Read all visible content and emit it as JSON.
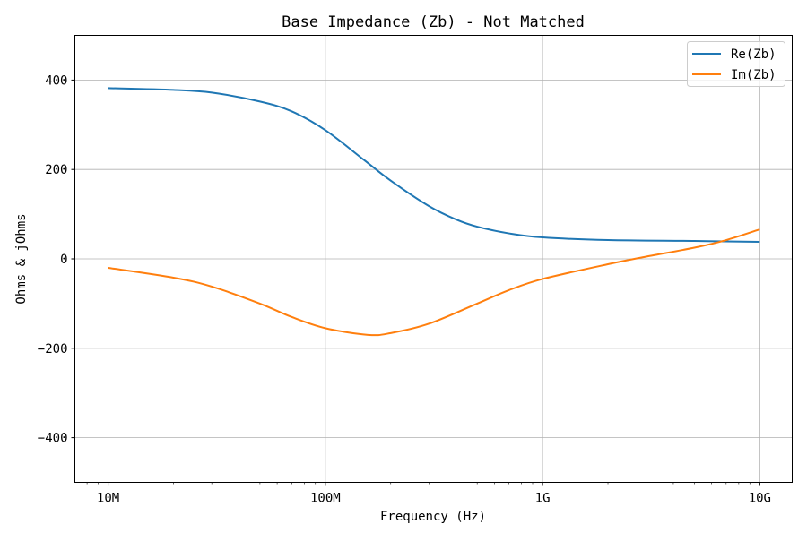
{
  "chart_data": {
    "type": "line",
    "title": "Base Impedance (Zb) - Not Matched",
    "xlabel": "Frequency (Hz)",
    "ylabel": "Ohms & jOhms",
    "xscale": "log",
    "xlim": [
      7030000,
      14100000000
    ],
    "ylim": [
      -500,
      500
    ],
    "grid": true,
    "legend_position": "top-right",
    "x_ticks": [
      {
        "value": 10000000,
        "label": "10M"
      },
      {
        "value": 100000000,
        "label": "100M"
      },
      {
        "value": 1000000000,
        "label": "1G"
      },
      {
        "value": 10000000000,
        "label": "10G"
      }
    ],
    "y_ticks": [
      {
        "value": 400,
        "label": "400"
      },
      {
        "value": 200,
        "label": "200"
      },
      {
        "value": 0,
        "label": "0"
      },
      {
        "value": -200,
        "label": "−200"
      },
      {
        "value": -400,
        "label": "−400"
      }
    ],
    "series": [
      {
        "name": "Re(Zb)",
        "color": "#1f77b4",
        "x": [
          10000000.0,
          20000000.0,
          30000000.0,
          50000000.0,
          70000000.0,
          100000000.0,
          150000000.0,
          200000000.0,
          300000000.0,
          400000000.0,
          500000000.0,
          700000000.0,
          1000000000.0,
          2000000000.0,
          5000000000.0,
          10000000000.0
        ],
        "y": [
          382,
          378,
          372,
          352,
          330,
          288,
          222,
          175,
          118,
          88,
          72,
          57,
          48,
          42,
          40,
          38
        ]
      },
      {
        "name": "Im(Zb)",
        "color": "#ff7f0e",
        "x": [
          10000000.0,
          20000000.0,
          30000000.0,
          50000000.0,
          70000000.0,
          100000000.0,
          157000000.0,
          200000000.0,
          300000000.0,
          500000000.0,
          700000000.0,
          1000000000.0,
          2000000000.0,
          3000000000.0,
          5000000000.0,
          7000000000.0,
          10000000000.0
        ],
        "y": [
          -20,
          -42,
          -62,
          -100,
          -130,
          -155,
          -170,
          -166,
          -145,
          -100,
          -70,
          -45,
          -12,
          5,
          25,
          42,
          66
        ]
      }
    ]
  }
}
